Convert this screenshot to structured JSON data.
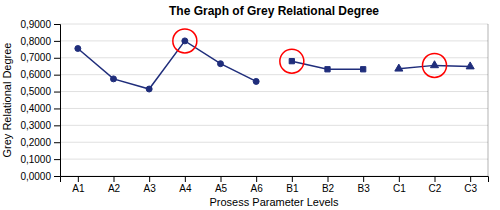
{
  "chart_data": {
    "type": "line",
    "title": "The Graph of Grey Relational Degree",
    "x_label": "Prosess Parameter Levels",
    "y_label": "Grey Relational Degree",
    "categories": [
      "A1",
      "A2",
      "A3",
      "A4",
      "A5",
      "A6",
      "B1",
      "B2",
      "B3",
      "C1",
      "C2",
      "C3"
    ],
    "series": [
      {
        "color": "#1F2D7B",
        "marker": "circle",
        "values": [
          0.755,
          0.575,
          0.515,
          0.8,
          0.665,
          0.56,
          null,
          null,
          null,
          null,
          null,
          null
        ]
      },
      {
        "color": "#1F2D7B",
        "marker": "square",
        "values": [
          null,
          null,
          null,
          null,
          null,
          null,
          0.68,
          0.632,
          0.632,
          null,
          null,
          null
        ]
      },
      {
        "color": "#1F2D7B",
        "marker": "triangle",
        "values": [
          null,
          null,
          null,
          null,
          null,
          null,
          null,
          null,
          null,
          0.635,
          0.655,
          0.648
        ]
      },
      {
        "type": "scatter",
        "color": "red",
        "marker": "open-circle",
        "values": [
          null,
          null,
          null,
          0.8,
          null,
          null,
          0.68,
          null,
          null,
          null,
          0.655,
          null
        ]
      }
    ],
    "ylim": [
      0.0,
      0.9
    ],
    "yticks": [
      {
        "value": 0.0,
        "label": "0,0000"
      },
      {
        "value": 0.1,
        "label": "0,1000"
      },
      {
        "value": 0.2,
        "label": "0,2000"
      },
      {
        "value": 0.3,
        "label": "0,3000"
      },
      {
        "value": 0.4,
        "label": "0,4000"
      },
      {
        "value": 0.5,
        "label": "0,5000"
      },
      {
        "value": 0.6,
        "label": "0,6000"
      },
      {
        "value": 0.7,
        "label": "0,7000"
      },
      {
        "value": 0.8,
        "label": "0,8000"
      },
      {
        "value": 0.9,
        "label": "0,9000"
      }
    ],
    "grid": true
  }
}
